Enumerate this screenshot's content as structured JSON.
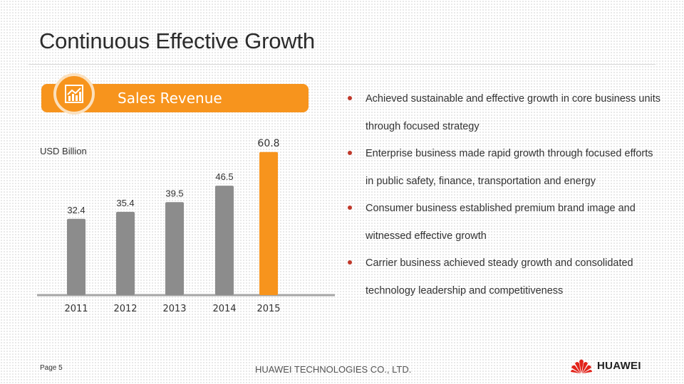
{
  "page": {
    "title": "Continuous Effective Growth",
    "page_number": "Page 5",
    "company": "HUAWEI TECHNOLOGIES CO., LTD.",
    "logo_text": "HUAWEI"
  },
  "banner": {
    "label": "Sales Revenue",
    "icon": "chart-icon"
  },
  "colors": {
    "accent": "#f7941d",
    "bar_gray": "#8c8c8c",
    "bullet": "#c0392b"
  },
  "chart_data": {
    "type": "bar",
    "title": "Sales Revenue",
    "ylabel": "USD Billion",
    "categories": [
      "2011",
      "2012",
      "2013",
      "2014",
      "2015"
    ],
    "values": [
      32.4,
      35.4,
      39.5,
      46.5,
      60.8
    ],
    "value_labels": [
      "32.4",
      "35.4",
      "39.5",
      "46.5",
      "60.8"
    ],
    "highlight": "2015",
    "ylim": [
      0,
      62
    ]
  },
  "bullets": [
    "Achieved sustainable and effective growth in core business units through focused strategy",
    "Enterprise business made rapid growth through focused efforts in public safety, finance, transportation and energy",
    "Consumer business established premium brand image and witnessed effective growth",
    "Carrier business achieved steady growth and consolidated technology leadership and competitiveness"
  ]
}
